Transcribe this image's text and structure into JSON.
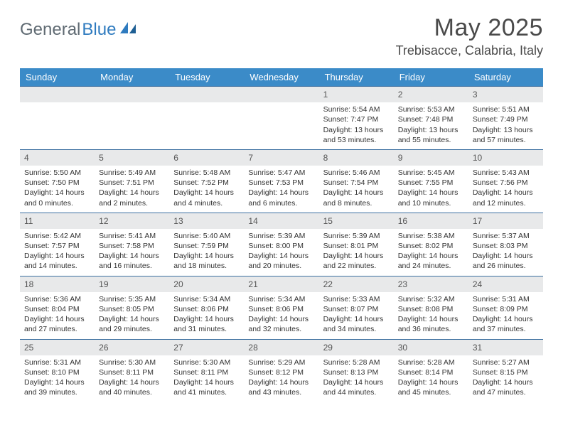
{
  "logo": {
    "part1": "General",
    "part2": "Blue"
  },
  "header": {
    "title": "May 2025",
    "location": "Trebisacce, Calabria, Italy"
  },
  "colors": {
    "header_bg": "#3b8bc8",
    "header_text": "#ffffff",
    "daynum_bg": "#e8e9ea",
    "row_border": "#3b6fa0",
    "accent_blue": "#2f7bbf",
    "logo_gray": "#5f6a72"
  },
  "weekdays": [
    "Sunday",
    "Monday",
    "Tuesday",
    "Wednesday",
    "Thursday",
    "Friday",
    "Saturday"
  ],
  "weeks": [
    [
      null,
      null,
      null,
      null,
      {
        "n": "1",
        "sr": "5:54 AM",
        "ss": "7:47 PM",
        "dl": "13 hours and 53 minutes."
      },
      {
        "n": "2",
        "sr": "5:53 AM",
        "ss": "7:48 PM",
        "dl": "13 hours and 55 minutes."
      },
      {
        "n": "3",
        "sr": "5:51 AM",
        "ss": "7:49 PM",
        "dl": "13 hours and 57 minutes."
      }
    ],
    [
      {
        "n": "4",
        "sr": "5:50 AM",
        "ss": "7:50 PM",
        "dl": "14 hours and 0 minutes."
      },
      {
        "n": "5",
        "sr": "5:49 AM",
        "ss": "7:51 PM",
        "dl": "14 hours and 2 minutes."
      },
      {
        "n": "6",
        "sr": "5:48 AM",
        "ss": "7:52 PM",
        "dl": "14 hours and 4 minutes."
      },
      {
        "n": "7",
        "sr": "5:47 AM",
        "ss": "7:53 PM",
        "dl": "14 hours and 6 minutes."
      },
      {
        "n": "8",
        "sr": "5:46 AM",
        "ss": "7:54 PM",
        "dl": "14 hours and 8 minutes."
      },
      {
        "n": "9",
        "sr": "5:45 AM",
        "ss": "7:55 PM",
        "dl": "14 hours and 10 minutes."
      },
      {
        "n": "10",
        "sr": "5:43 AM",
        "ss": "7:56 PM",
        "dl": "14 hours and 12 minutes."
      }
    ],
    [
      {
        "n": "11",
        "sr": "5:42 AM",
        "ss": "7:57 PM",
        "dl": "14 hours and 14 minutes."
      },
      {
        "n": "12",
        "sr": "5:41 AM",
        "ss": "7:58 PM",
        "dl": "14 hours and 16 minutes."
      },
      {
        "n": "13",
        "sr": "5:40 AM",
        "ss": "7:59 PM",
        "dl": "14 hours and 18 minutes."
      },
      {
        "n": "14",
        "sr": "5:39 AM",
        "ss": "8:00 PM",
        "dl": "14 hours and 20 minutes."
      },
      {
        "n": "15",
        "sr": "5:39 AM",
        "ss": "8:01 PM",
        "dl": "14 hours and 22 minutes."
      },
      {
        "n": "16",
        "sr": "5:38 AM",
        "ss": "8:02 PM",
        "dl": "14 hours and 24 minutes."
      },
      {
        "n": "17",
        "sr": "5:37 AM",
        "ss": "8:03 PM",
        "dl": "14 hours and 26 minutes."
      }
    ],
    [
      {
        "n": "18",
        "sr": "5:36 AM",
        "ss": "8:04 PM",
        "dl": "14 hours and 27 minutes."
      },
      {
        "n": "19",
        "sr": "5:35 AM",
        "ss": "8:05 PM",
        "dl": "14 hours and 29 minutes."
      },
      {
        "n": "20",
        "sr": "5:34 AM",
        "ss": "8:06 PM",
        "dl": "14 hours and 31 minutes."
      },
      {
        "n": "21",
        "sr": "5:34 AM",
        "ss": "8:06 PM",
        "dl": "14 hours and 32 minutes."
      },
      {
        "n": "22",
        "sr": "5:33 AM",
        "ss": "8:07 PM",
        "dl": "14 hours and 34 minutes."
      },
      {
        "n": "23",
        "sr": "5:32 AM",
        "ss": "8:08 PM",
        "dl": "14 hours and 36 minutes."
      },
      {
        "n": "24",
        "sr": "5:31 AM",
        "ss": "8:09 PM",
        "dl": "14 hours and 37 minutes."
      }
    ],
    [
      {
        "n": "25",
        "sr": "5:31 AM",
        "ss": "8:10 PM",
        "dl": "14 hours and 39 minutes."
      },
      {
        "n": "26",
        "sr": "5:30 AM",
        "ss": "8:11 PM",
        "dl": "14 hours and 40 minutes."
      },
      {
        "n": "27",
        "sr": "5:30 AM",
        "ss": "8:11 PM",
        "dl": "14 hours and 41 minutes."
      },
      {
        "n": "28",
        "sr": "5:29 AM",
        "ss": "8:12 PM",
        "dl": "14 hours and 43 minutes."
      },
      {
        "n": "29",
        "sr": "5:28 AM",
        "ss": "8:13 PM",
        "dl": "14 hours and 44 minutes."
      },
      {
        "n": "30",
        "sr": "5:28 AM",
        "ss": "8:14 PM",
        "dl": "14 hours and 45 minutes."
      },
      {
        "n": "31",
        "sr": "5:27 AM",
        "ss": "8:15 PM",
        "dl": "14 hours and 47 minutes."
      }
    ]
  ],
  "labels": {
    "sunrise": "Sunrise: ",
    "sunset": "Sunset: ",
    "daylight": "Daylight: "
  }
}
